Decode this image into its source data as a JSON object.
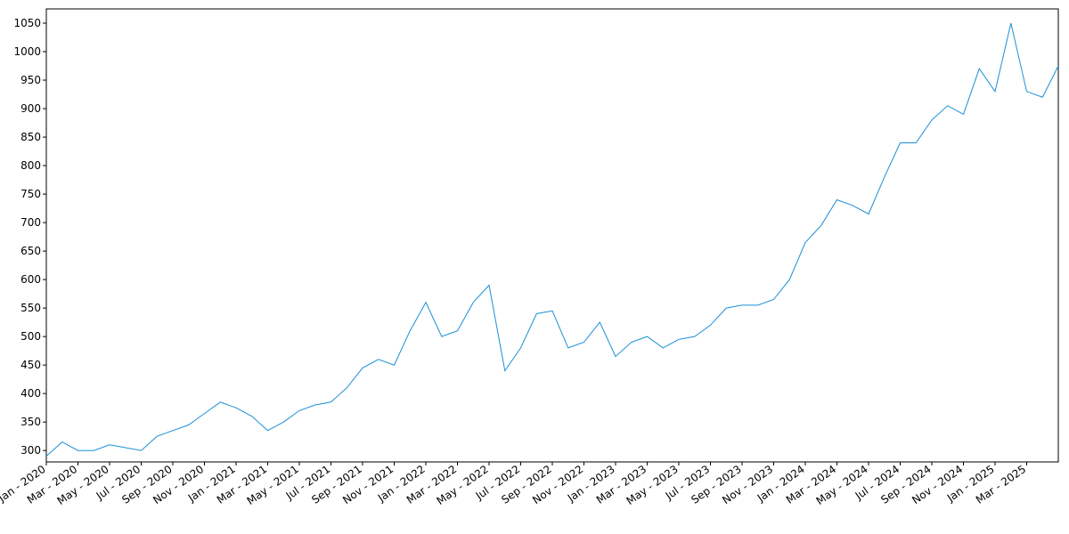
{
  "chart_data": {
    "type": "line",
    "x": [
      "2020-01",
      "2020-02",
      "2020-03",
      "2020-04",
      "2020-05",
      "2020-06",
      "2020-07",
      "2020-08",
      "2020-09",
      "2020-10",
      "2020-11",
      "2020-12",
      "2021-01",
      "2021-02",
      "2021-03",
      "2021-04",
      "2021-05",
      "2021-06",
      "2021-07",
      "2021-08",
      "2021-09",
      "2021-10",
      "2021-11",
      "2021-12",
      "2022-01",
      "2022-02",
      "2022-03",
      "2022-04",
      "2022-05",
      "2022-06",
      "2022-07",
      "2022-08",
      "2022-09",
      "2022-10",
      "2022-11",
      "2022-12",
      "2023-01",
      "2023-02",
      "2023-03",
      "2023-04",
      "2023-05",
      "2023-06",
      "2023-07",
      "2023-08",
      "2023-09",
      "2023-10",
      "2023-11",
      "2023-12",
      "2024-01",
      "2024-02",
      "2024-03",
      "2024-04",
      "2024-05",
      "2024-06",
      "2024-07",
      "2024-08",
      "2024-09",
      "2024-10",
      "2024-11",
      "2024-12",
      "2025-01",
      "2025-02",
      "2025-03",
      "2025-04",
      "2025-05"
    ],
    "series": [
      {
        "color": "#1a8fd6",
        "values": [
          290,
          315,
          300,
          300,
          310,
          305,
          300,
          325,
          335,
          345,
          365,
          385,
          375,
          360,
          335,
          350,
          370,
          380,
          385,
          410,
          445,
          460,
          450,
          510,
          560,
          500,
          510,
          560,
          590,
          440,
          480,
          540,
          545,
          480,
          490,
          525,
          465,
          490,
          500,
          480,
          495,
          500,
          520,
          550,
          555,
          555,
          565,
          600,
          665,
          695,
          740,
          730,
          715,
          780,
          840,
          840,
          880,
          905,
          890,
          970,
          930,
          1050,
          930,
          920,
          975
        ]
      }
    ],
    "xlim": [
      "2020-01",
      "2025-05"
    ],
    "xticks": [
      {
        "value": "2020-01",
        "label": "Jan - 2020"
      },
      {
        "value": "2020-03",
        "label": "Mar - 2020"
      },
      {
        "value": "2020-05",
        "label": "May - 2020"
      },
      {
        "value": "2020-07",
        "label": "Jul - 2020"
      },
      {
        "value": "2020-09",
        "label": "Sep - 2020"
      },
      {
        "value": "2020-11",
        "label": "Nov - 2020"
      },
      {
        "value": "2021-01",
        "label": "Jan - 2021"
      },
      {
        "value": "2021-03",
        "label": "Mar - 2021"
      },
      {
        "value": "2021-05",
        "label": "May - 2021"
      },
      {
        "value": "2021-07",
        "label": "Jul - 2021"
      },
      {
        "value": "2021-09",
        "label": "Sep - 2021"
      },
      {
        "value": "2021-11",
        "label": "Nov - 2021"
      },
      {
        "value": "2022-01",
        "label": "Jan - 2022"
      },
      {
        "value": "2022-03",
        "label": "Mar - 2022"
      },
      {
        "value": "2022-05",
        "label": "May - 2022"
      },
      {
        "value": "2022-07",
        "label": "Jul - 2022"
      },
      {
        "value": "2022-09",
        "label": "Sep - 2022"
      },
      {
        "value": "2022-11",
        "label": "Nov - 2022"
      },
      {
        "value": "2023-01",
        "label": "Jan - 2023"
      },
      {
        "value": "2023-03",
        "label": "Mar - 2023"
      },
      {
        "value": "2023-05",
        "label": "May - 2023"
      },
      {
        "value": "2023-07",
        "label": "Jul - 2023"
      },
      {
        "value": "2023-09",
        "label": "Sep - 2023"
      },
      {
        "value": "2023-11",
        "label": "Nov - 2023"
      },
      {
        "value": "2024-01",
        "label": "Jan - 2024"
      },
      {
        "value": "2024-03",
        "label": "Mar - 2024"
      },
      {
        "value": "2024-05",
        "label": "May - 2024"
      },
      {
        "value": "2024-07",
        "label": "Jul - 2024"
      },
      {
        "value": "2024-09",
        "label": "Sep - 2024"
      },
      {
        "value": "2024-11",
        "label": "Nov - 2024"
      },
      {
        "value": "2025-01",
        "label": "Jan - 2025"
      },
      {
        "value": "2025-03",
        "label": "Mar - 2025"
      }
    ],
    "ylim": [
      280,
      1075
    ],
    "yticks": [
      300,
      350,
      400,
      450,
      500,
      550,
      600,
      650,
      700,
      750,
      800,
      850,
      900,
      950,
      1000,
      1050
    ],
    "grid": false
  }
}
